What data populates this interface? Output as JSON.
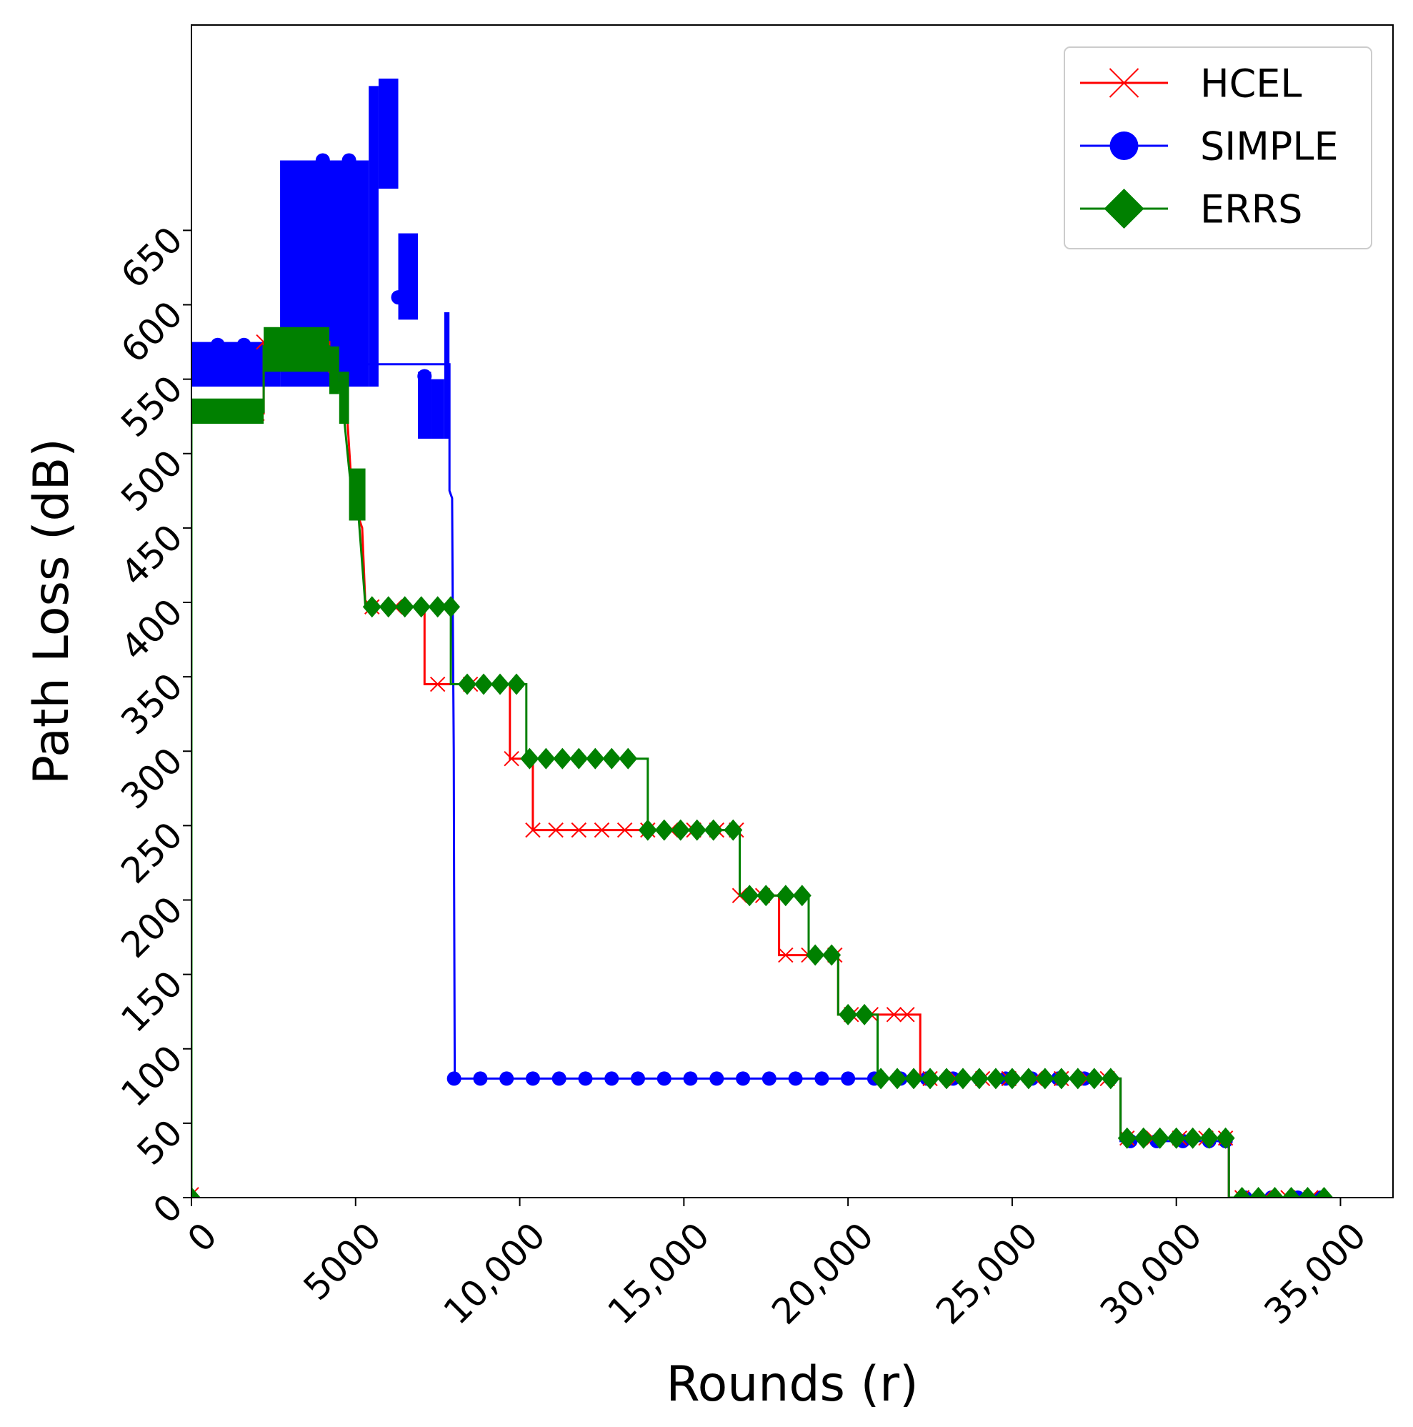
{
  "chart_data": {
    "type": "line",
    "title": "",
    "xlabel": "Rounds (r)",
    "ylabel": "Path Loss (dB)",
    "xlim": [
      0,
      36600
    ],
    "ylim": [
      0,
      788
    ],
    "x_ticks": [
      0,
      5000,
      10000,
      15000,
      20000,
      25000,
      30000,
      35000
    ],
    "x_tick_labels": [
      "0",
      "5000",
      "10,000",
      "15,000",
      "20,000",
      "25,000",
      "30,000",
      "35,000"
    ],
    "y_ticks": [
      0,
      50,
      100,
      150,
      200,
      250,
      300,
      350,
      400,
      450,
      500,
      550,
      600,
      650
    ],
    "y_tick_labels": [
      "0",
      "50",
      "100",
      "150",
      "200",
      "250",
      "300",
      "350",
      "400",
      "450",
      "500",
      "550",
      "600",
      "650"
    ],
    "grid": false,
    "legend_position": "top-right",
    "series": [
      {
        "name": "HCEL",
        "color": "#ff0000",
        "marker": "x",
        "points": [
          [
            0,
            2
          ],
          [
            0,
            527
          ],
          [
            2200,
            527
          ],
          [
            2200,
            575
          ],
          [
            4200,
            575
          ],
          [
            4200,
            555
          ],
          [
            4700,
            540
          ],
          [
            4900,
            470
          ],
          [
            5200,
            450
          ],
          [
            5300,
            397
          ],
          [
            7100,
            397
          ],
          [
            7100,
            345
          ],
          [
            9700,
            345
          ],
          [
            9700,
            295
          ],
          [
            10400,
            295
          ],
          [
            10400,
            247
          ],
          [
            16700,
            247
          ],
          [
            16700,
            203
          ],
          [
            17900,
            203
          ],
          [
            17900,
            163
          ],
          [
            19700,
            163
          ],
          [
            19700,
            123
          ],
          [
            22200,
            123
          ],
          [
            22200,
            80
          ],
          [
            28300,
            80
          ],
          [
            28300,
            40
          ],
          [
            31600,
            40
          ],
          [
            31600,
            0
          ],
          [
            34700,
            0
          ]
        ],
        "marker_points": [
          [
            0,
            2
          ],
          [
            200,
            527
          ],
          [
            1000,
            527
          ],
          [
            2000,
            527
          ],
          [
            2200,
            575
          ],
          [
            3000,
            575
          ],
          [
            5500,
            397
          ],
          [
            6200,
            397
          ],
          [
            7500,
            345
          ],
          [
            8500,
            345
          ],
          [
            9750,
            295
          ],
          [
            10400,
            247
          ],
          [
            11100,
            247
          ],
          [
            11800,
            247
          ],
          [
            12500,
            247
          ],
          [
            13200,
            247
          ],
          [
            13900,
            247
          ],
          [
            14600,
            247
          ],
          [
            15300,
            247
          ],
          [
            16000,
            247
          ],
          [
            16600,
            247
          ],
          [
            16700,
            203
          ],
          [
            17400,
            203
          ],
          [
            18100,
            163
          ],
          [
            18800,
            163
          ],
          [
            19600,
            163
          ],
          [
            20100,
            123
          ],
          [
            20700,
            123
          ],
          [
            21400,
            123
          ],
          [
            21800,
            123
          ],
          [
            22500,
            80
          ],
          [
            23300,
            80
          ],
          [
            24100,
            80
          ],
          [
            24900,
            80
          ],
          [
            25700,
            80
          ],
          [
            26500,
            80
          ],
          [
            27300,
            80
          ],
          [
            27900,
            80
          ],
          [
            28500,
            40
          ],
          [
            29300,
            40
          ],
          [
            30100,
            40
          ],
          [
            30900,
            40
          ],
          [
            31500,
            40
          ],
          [
            32000,
            0
          ],
          [
            32700,
            0
          ],
          [
            33400,
            0
          ],
          [
            34100,
            0
          ]
        ]
      },
      {
        "name": "SIMPLE",
        "color": "#0000ff",
        "marker": "circle",
        "band_segments": [
          [
            0,
            2700,
            545,
            575
          ],
          [
            2700,
            5400,
            545,
            697
          ],
          [
            5400,
            5700,
            545,
            747
          ],
          [
            5700,
            6300,
            678,
            752
          ],
          [
            6300,
            6900,
            590,
            648
          ],
          [
            6900,
            7300,
            510,
            555
          ],
          [
            7300,
            7700,
            510,
            550
          ],
          [
            7700,
            7860,
            510,
            595
          ]
        ],
        "points": [
          [
            0,
            560
          ],
          [
            7860,
            560
          ],
          [
            7860,
            475
          ],
          [
            7940,
            470
          ],
          [
            7960,
            395
          ],
          [
            7990,
            300
          ],
          [
            8000,
            210
          ],
          [
            8020,
            80
          ],
          [
            28300,
            80
          ],
          [
            28300,
            38
          ],
          [
            31600,
            38
          ],
          [
            31600,
            0
          ],
          [
            34700,
            0
          ]
        ],
        "marker_points": [
          [
            800,
            573
          ],
          [
            1600,
            573
          ],
          [
            4000,
            697
          ],
          [
            4800,
            697
          ],
          [
            6300,
            605
          ],
          [
            7100,
            552
          ],
          [
            8000,
            80
          ],
          [
            8800,
            80
          ],
          [
            9600,
            80
          ],
          [
            10400,
            80
          ],
          [
            11200,
            80
          ],
          [
            12000,
            80
          ],
          [
            12800,
            80
          ],
          [
            13600,
            80
          ],
          [
            14400,
            80
          ],
          [
            15200,
            80
          ],
          [
            16000,
            80
          ],
          [
            16800,
            80
          ],
          [
            17600,
            80
          ],
          [
            18400,
            80
          ],
          [
            19200,
            80
          ],
          [
            20000,
            80
          ],
          [
            20800,
            80
          ],
          [
            21600,
            80
          ],
          [
            22400,
            80
          ],
          [
            23200,
            80
          ],
          [
            24000,
            80
          ],
          [
            24800,
            80
          ],
          [
            25600,
            80
          ],
          [
            26400,
            80
          ],
          [
            27200,
            80
          ],
          [
            28000,
            80
          ],
          [
            28600,
            38
          ],
          [
            29400,
            38
          ],
          [
            30200,
            38
          ],
          [
            31000,
            38
          ],
          [
            31500,
            38
          ],
          [
            32100,
            0
          ],
          [
            32900,
            0
          ],
          [
            33700,
            0
          ],
          [
            34400,
            0
          ]
        ]
      },
      {
        "name": "ERRS",
        "color": "#008000",
        "marker": "diamond",
        "band_segments": [
          [
            0,
            2200,
            520,
            537
          ],
          [
            2200,
            4200,
            555,
            585
          ],
          [
            4200,
            4500,
            540,
            572
          ],
          [
            4500,
            4800,
            520,
            555
          ],
          [
            4800,
            5300,
            455,
            490
          ]
        ],
        "points": [
          [
            0,
            0
          ],
          [
            0,
            528
          ],
          [
            2200,
            528
          ],
          [
            2200,
            572
          ],
          [
            4200,
            572
          ],
          [
            4400,
            555
          ],
          [
            4600,
            535
          ],
          [
            4800,
            490
          ],
          [
            4900,
            470
          ],
          [
            5100,
            455
          ],
          [
            5300,
            397
          ],
          [
            7900,
            397
          ],
          [
            7900,
            345
          ],
          [
            10200,
            345
          ],
          [
            10200,
            295
          ],
          [
            13900,
            295
          ],
          [
            13900,
            247
          ],
          [
            16700,
            247
          ],
          [
            16700,
            203
          ],
          [
            18800,
            203
          ],
          [
            18800,
            163
          ],
          [
            19700,
            163
          ],
          [
            19700,
            123
          ],
          [
            20900,
            123
          ],
          [
            20900,
            80
          ],
          [
            28300,
            80
          ],
          [
            28300,
            40
          ],
          [
            31600,
            40
          ],
          [
            31600,
            0
          ],
          [
            34700,
            0
          ]
        ],
        "marker_points": [
          [
            0,
            0
          ],
          [
            300,
            528
          ],
          [
            1100,
            528
          ],
          [
            1900,
            528
          ],
          [
            2500,
            572
          ],
          [
            3300,
            572
          ],
          [
            4100,
            562
          ],
          [
            5500,
            397
          ],
          [
            6000,
            397
          ],
          [
            6500,
            397
          ],
          [
            7000,
            397
          ],
          [
            7500,
            397
          ],
          [
            7900,
            397
          ],
          [
            8400,
            345
          ],
          [
            8900,
            345
          ],
          [
            9400,
            345
          ],
          [
            9900,
            345
          ],
          [
            10300,
            295
          ],
          [
            10800,
            295
          ],
          [
            11300,
            295
          ],
          [
            11800,
            295
          ],
          [
            12300,
            295
          ],
          [
            12800,
            295
          ],
          [
            13300,
            295
          ],
          [
            13900,
            247
          ],
          [
            14400,
            247
          ],
          [
            14900,
            247
          ],
          [
            15400,
            247
          ],
          [
            15900,
            247
          ],
          [
            16500,
            247
          ],
          [
            17000,
            203
          ],
          [
            17500,
            203
          ],
          [
            18100,
            203
          ],
          [
            18600,
            203
          ],
          [
            19000,
            163
          ],
          [
            19500,
            163
          ],
          [
            20000,
            123
          ],
          [
            20500,
            123
          ],
          [
            21000,
            80
          ],
          [
            21500,
            80
          ],
          [
            22000,
            80
          ],
          [
            22500,
            80
          ],
          [
            23000,
            80
          ],
          [
            23500,
            80
          ],
          [
            24000,
            80
          ],
          [
            24500,
            80
          ],
          [
            25000,
            80
          ],
          [
            25500,
            80
          ],
          [
            26000,
            80
          ],
          [
            26500,
            80
          ],
          [
            27000,
            80
          ],
          [
            27500,
            80
          ],
          [
            28000,
            80
          ],
          [
            28500,
            40
          ],
          [
            29000,
            40
          ],
          [
            29500,
            40
          ],
          [
            30000,
            40
          ],
          [
            30500,
            40
          ],
          [
            31000,
            40
          ],
          [
            31500,
            40
          ],
          [
            32000,
            0
          ],
          [
            32500,
            0
          ],
          [
            33000,
            0
          ],
          [
            33500,
            0
          ],
          [
            34000,
            0
          ],
          [
            34500,
            0
          ]
        ]
      }
    ]
  }
}
